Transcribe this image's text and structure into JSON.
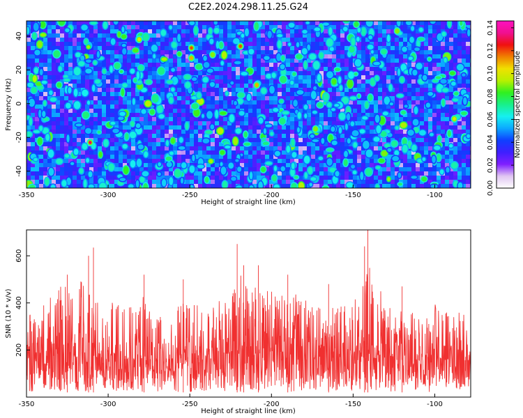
{
  "title": "C2E2.2024.298.11.25.G24",
  "chart_data": [
    {
      "type": "heatmap",
      "xlabel": "Height of straight line (km)",
      "ylabel": "Frequency (Hz)",
      "xlim": [
        -350,
        -78
      ],
      "ylim": [
        -50,
        49
      ],
      "xticks": [
        -350,
        -300,
        -250,
        -200,
        -150,
        -100
      ],
      "yticks": [
        -40,
        -20,
        0,
        20,
        40
      ],
      "colorbar": {
        "label": "Normalized spectral amplitude",
        "range": [
          0.0,
          0.146
        ],
        "ticks": [
          "0.00",
          "0.02",
          "0.04",
          "0.06",
          "0.08",
          "0.10",
          "0.12",
          "0.14"
        ],
        "colormap": [
          "#ffffff",
          "#e0c6f2",
          "#7f1fff",
          "#3f1fff",
          "#0f3fff",
          "#0ca8ff",
          "#16f0f0",
          "#18f08a",
          "#30f020",
          "#b8f000",
          "#f0e000",
          "#f08000",
          "#f01010",
          "#f01090",
          "#ff10c0"
        ]
      },
      "hotspots": [
        {
          "x": -311,
          "y": -23,
          "value": 0.13
        },
        {
          "x": -249,
          "y": 33,
          "value": 0.12
        },
        {
          "x": -249,
          "y": 27,
          "value": 0.11
        },
        {
          "x": -219,
          "y": 34,
          "value": 0.12
        },
        {
          "x": -209,
          "y": 11,
          "value": 0.11
        },
        {
          "x": -281,
          "y": 38,
          "value": 0.1
        },
        {
          "x": -236,
          "y": 29,
          "value": 0.09
        },
        {
          "x": -173,
          "y": -15,
          "value": 0.09
        },
        {
          "x": -88,
          "y": -9,
          "value": 0.1
        },
        {
          "x": -123,
          "y": 43,
          "value": 0.09
        },
        {
          "x": -330,
          "y": 11,
          "value": 0.08
        },
        {
          "x": -205,
          "y": -39,
          "value": 0.08
        },
        {
          "x": -148,
          "y": 47,
          "value": 0.08
        },
        {
          "x": -273,
          "y": -5,
          "value": 0.08
        }
      ]
    },
    {
      "type": "line",
      "xlabel": "Height of straight line (km)",
      "ylabel": "SNR (10 * v/v)",
      "xlim": [
        -350,
        -78
      ],
      "ylim": [
        0,
        710
      ],
      "xticks": [
        -350,
        -300,
        -250,
        -200,
        -150,
        -100
      ],
      "yticks": [
        200,
        400,
        600
      ],
      "series_color": "#f03030",
      "series": [
        {
          "x": [
            -350,
            -340,
            -330,
            -320,
            -310,
            -300,
            -290,
            -280,
            -270,
            -260,
            -250,
            -240,
            -230,
            -220,
            -210,
            -200,
            -190,
            -180,
            -170,
            -160,
            -150,
            -140,
            -130,
            -120,
            -110,
            -100,
            -90,
            -80
          ],
          "upper": [
            360,
            390,
            470,
            470,
            560,
            410,
            380,
            440,
            380,
            420,
            420,
            380,
            440,
            540,
            480,
            450,
            440,
            470,
            380,
            390,
            440,
            560,
            440,
            360,
            370,
            400,
            380,
            350
          ],
          "median": [
            160,
            165,
            170,
            165,
            175,
            160,
            160,
            165,
            158,
            163,
            165,
            160,
            175,
            210,
            205,
            195,
            185,
            190,
            170,
            165,
            175,
            200,
            180,
            160,
            160,
            165,
            160,
            155
          ],
          "lower": [
            20,
            18,
            25,
            22,
            20,
            25,
            20,
            22,
            25,
            20,
            18,
            25,
            22,
            20,
            25,
            30,
            22,
            20,
            25,
            22,
            20,
            25,
            22,
            20,
            25,
            20,
            22,
            20
          ],
          "peaks": [
            {
              "x": -309,
              "y": 635
            },
            {
              "x": -312,
              "y": 600
            },
            {
              "x": -221,
              "y": 650
            },
            {
              "x": -217,
              "y": 560
            },
            {
              "x": -208,
              "y": 560
            },
            {
              "x": -141,
              "y": 710
            },
            {
              "x": -143,
              "y": 640
            },
            {
              "x": -278,
              "y": 520
            },
            {
              "x": -325,
              "y": 520
            },
            {
              "x": -254,
              "y": 500
            },
            {
              "x": -190,
              "y": 520
            },
            {
              "x": -165,
              "y": 480
            },
            {
              "x": -120,
              "y": 470
            }
          ]
        }
      ]
    }
  ]
}
